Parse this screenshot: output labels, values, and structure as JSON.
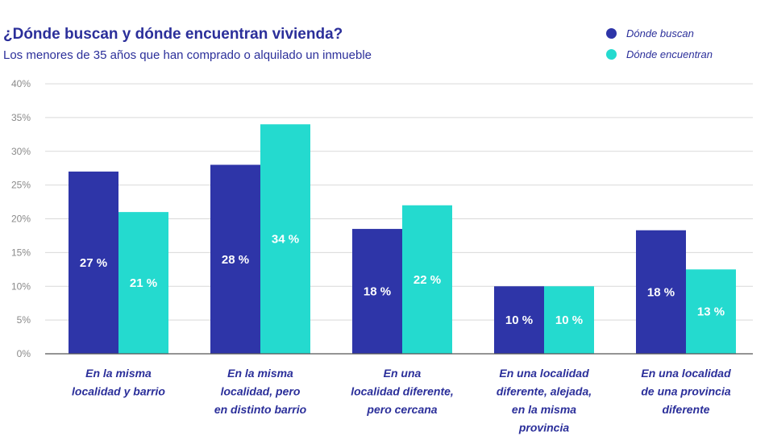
{
  "chart_data": {
    "type": "bar",
    "title": "¿Dónde buscan y dónde encuentran vivienda?",
    "subtitle": "Los menores de 35 años que han comprado o alquilado un inmueble",
    "xlabel": "",
    "ylabel": "",
    "ylim": [
      0,
      40
    ],
    "y_ticks": [
      0,
      5,
      10,
      15,
      20,
      25,
      30,
      35,
      40
    ],
    "y_tick_labels": [
      "0%",
      "5%",
      "10%",
      "15%",
      "20%",
      "25%",
      "30%",
      "35%",
      "40%"
    ],
    "grid": true,
    "legend_position": "top-right",
    "categories": [
      [
        "En la misma",
        "localidad y barrio"
      ],
      [
        "En la misma",
        "localidad, pero",
        "en distinto barrio"
      ],
      [
        "En una",
        "localidad diferente,",
        "pero cercana"
      ],
      [
        "En una localidad",
        "diferente, alejada,",
        "en la misma",
        "provincia"
      ],
      [
        "En una localidad",
        "de una provincia",
        "diferente"
      ]
    ],
    "series": [
      {
        "name": "Dónde buscan",
        "color": "#2e35a8",
        "values": [
          27,
          28,
          18.5,
          10,
          18.3
        ],
        "labels": [
          "27 %",
          "28 %",
          "18 %",
          "10 %",
          "18 %"
        ]
      },
      {
        "name": "Dónde encuentran",
        "color": "#24dacf",
        "values": [
          21,
          34,
          22,
          10,
          12.5
        ],
        "labels": [
          "21 %",
          "34 %",
          "22 %",
          "10 %",
          "13 %"
        ]
      }
    ]
  }
}
